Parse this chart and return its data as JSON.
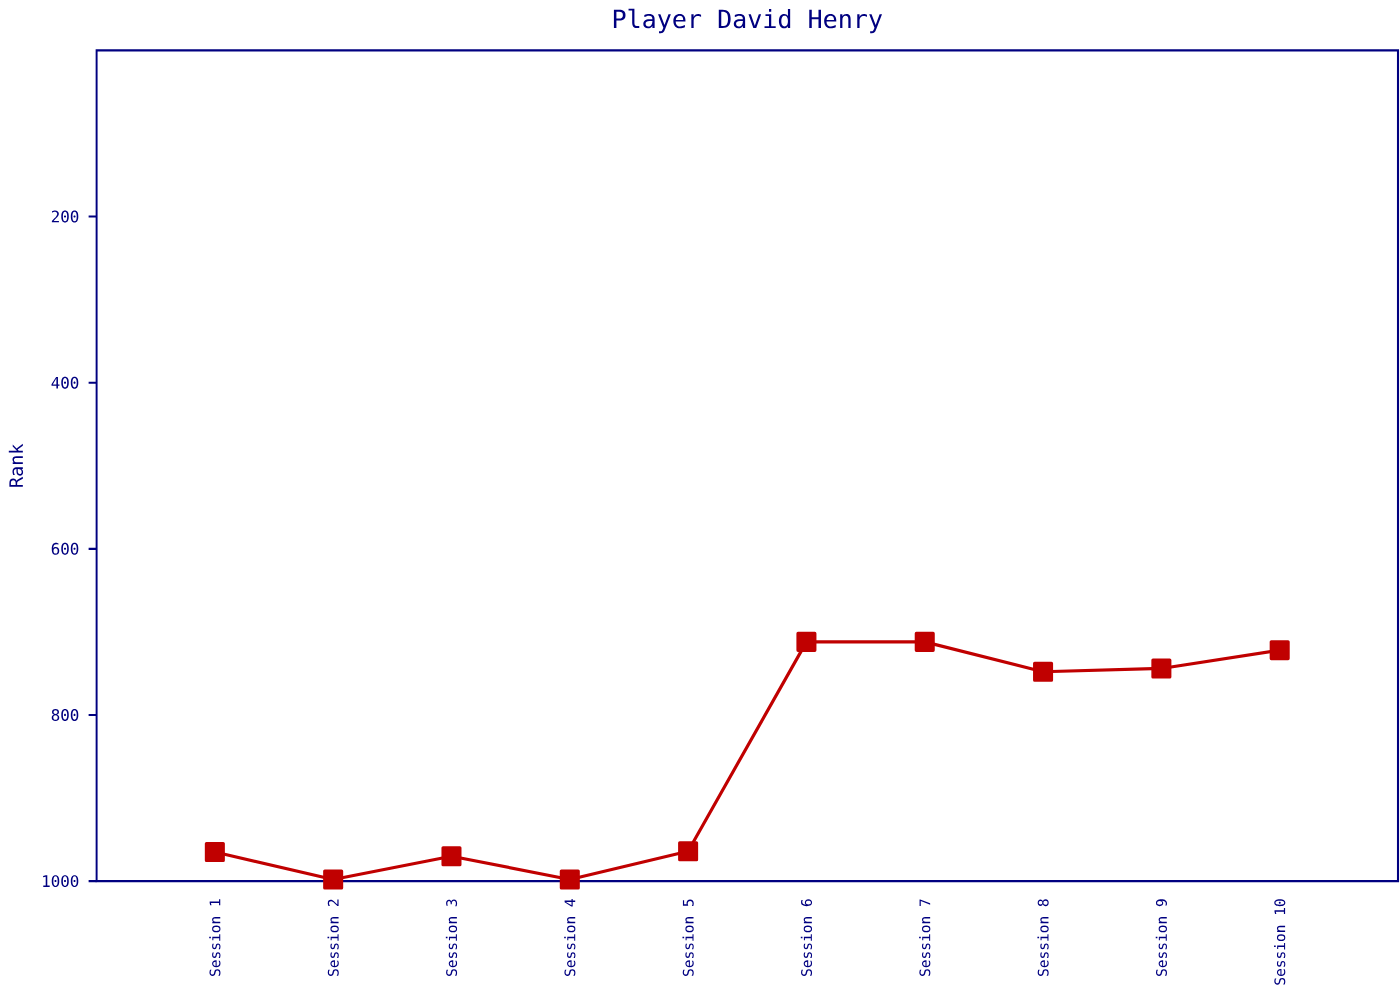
{
  "chart_data": {
    "type": "line",
    "title": "Player David Henry",
    "ylabel": "Rank",
    "categories": [
      "Session 1",
      "Session 2",
      "Session 3",
      "Session 4",
      "Session 5",
      "Session 6",
      "Session 7",
      "Session 8",
      "Session 9",
      "Session 10"
    ],
    "series": [
      {
        "color": "#c00000",
        "values": [
          965,
          998,
          970,
          998,
          964,
          712,
          712,
          748,
          744,
          722
        ]
      }
    ],
    "ylim": [
      1000,
      0
    ],
    "yticks": [
      200,
      400,
      600,
      800,
      1000
    ],
    "marker": "square",
    "line_style": "solid"
  }
}
